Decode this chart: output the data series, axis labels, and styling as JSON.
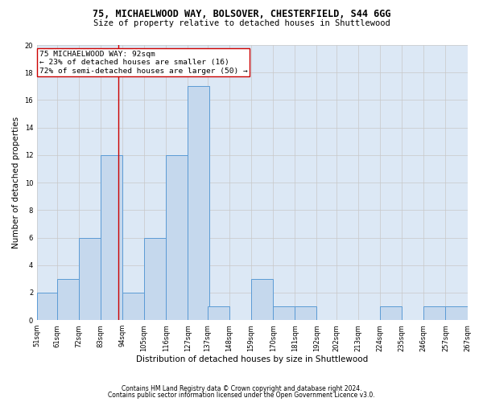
{
  "title1": "75, MICHAELWOOD WAY, BOLSOVER, CHESTERFIELD, S44 6GG",
  "title2": "Size of property relative to detached houses in Shuttlewood",
  "xlabel": "Distribution of detached houses by size in Shuttlewood",
  "ylabel": "Number of detached properties",
  "footnote1": "Contains HM Land Registry data © Crown copyright and database right 2024.",
  "footnote2": "Contains public sector information licensed under the Open Government Licence v3.0.",
  "bar_left_edges": [
    51,
    61,
    72,
    83,
    94,
    105,
    116,
    127,
    137,
    148,
    159,
    170,
    181,
    192,
    202,
    213,
    224,
    235,
    246,
    257
  ],
  "bar_heights": [
    2,
    3,
    6,
    12,
    2,
    6,
    12,
    17,
    1,
    0,
    3,
    1,
    1,
    0,
    0,
    0,
    1,
    0,
    1,
    1
  ],
  "bin_width": 11,
  "bar_color": "#c5d8ed",
  "bar_edge_color": "#5b9bd5",
  "tick_labels": [
    "51sqm",
    "61sqm",
    "72sqm",
    "83sqm",
    "94sqm",
    "105sqm",
    "116sqm",
    "127sqm",
    "137sqm",
    "148sqm",
    "159sqm",
    "170sqm",
    "181sqm",
    "192sqm",
    "202sqm",
    "213sqm",
    "224sqm",
    "235sqm",
    "246sqm",
    "257sqm",
    "267sqm"
  ],
  "ylim": [
    0,
    20
  ],
  "yticks": [
    0,
    2,
    4,
    6,
    8,
    10,
    12,
    14,
    16,
    18,
    20
  ],
  "grid_color": "#c8c8c8",
  "property_size": 92,
  "vline_color": "#cc0000",
  "annotation_text": "75 MICHAELWOOD WAY: 92sqm\n← 23% of detached houses are smaller (16)\n72% of semi-detached houses are larger (50) →",
  "annotation_box_color": "#ffffff",
  "annotation_box_edge": "#cc0000",
  "bg_color": "#dce8f5",
  "title1_fontsize": 8.5,
  "title2_fontsize": 7.5,
  "ylabel_fontsize": 7.5,
  "xlabel_fontsize": 7.5,
  "footnote_fontsize": 5.5,
  "annot_fontsize": 6.8,
  "tick_fontsize": 6.0
}
